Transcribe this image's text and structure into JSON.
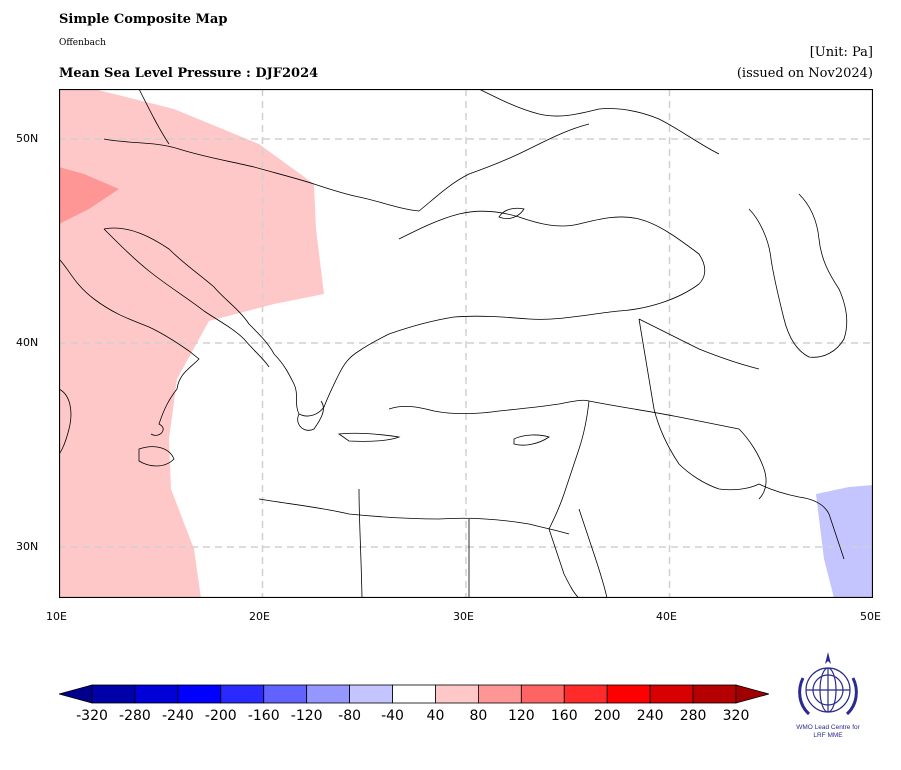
{
  "header": {
    "title": "Simple Composite Map",
    "subtitle": "Offenbach",
    "variable": "Mean Sea Level Pressure : DJF2024",
    "unit": "[Unit: Pa]",
    "issued": "(issued on Nov2024)"
  },
  "map": {
    "lon_range": [
      10,
      50
    ],
    "lat_range": [
      27.5,
      52.5
    ],
    "x_ticks": [
      "10E",
      "20E",
      "30E",
      "40E",
      "50E"
    ],
    "y_ticks": [
      "50N",
      "40N",
      "30N"
    ],
    "grid": "dashed"
  },
  "anomaly_regions": [
    {
      "name": "positive-anomaly-40-80",
      "value_range": "40 to 80",
      "color": "#ffc8c8"
    },
    {
      "name": "positive-anomaly-80-120",
      "value_range": "80 to 120",
      "color": "#ff9696"
    },
    {
      "name": "negative-anomaly-80-40",
      "value_range": "-80 to -40",
      "color": "#c4c4ff"
    }
  ],
  "colorbar": {
    "labels": [
      "-320",
      "-280",
      "-240",
      "-200",
      "-160",
      "-120",
      "-80",
      "-40",
      "40",
      "80",
      "120",
      "160",
      "200",
      "240",
      "280",
      "320"
    ],
    "colors": [
      "#0000a8",
      "#0000d8",
      "#0000ff",
      "#2a2aff",
      "#6262ff",
      "#9696ff",
      "#c4c4ff",
      "#ffffff",
      "#ffc8c8",
      "#ff9696",
      "#ff6464",
      "#ff2a2a",
      "#ff0000",
      "#d80000",
      "#b40000"
    ],
    "under_color": "#00008c",
    "over_color": "#a00000"
  },
  "logo": {
    "line1": "WMO Lead Centre for",
    "line2": "LRF MME"
  }
}
